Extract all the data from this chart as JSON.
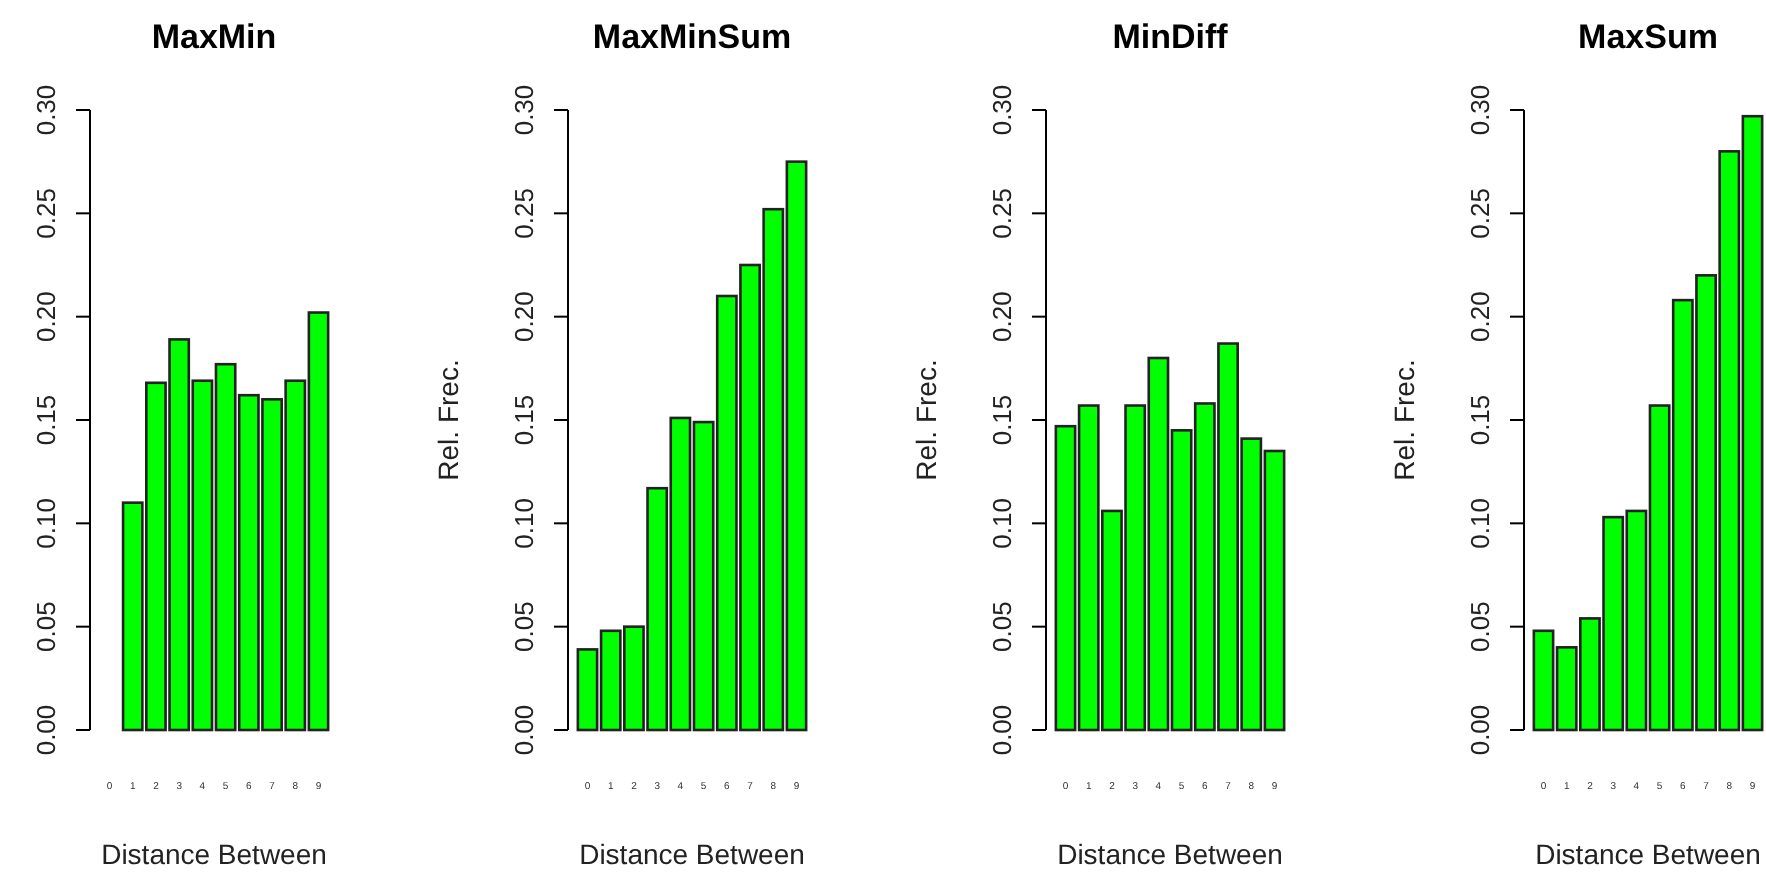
{
  "chart_data": [
    {
      "type": "bar",
      "title": "MaxMin",
      "xlabel": "Distance Between",
      "categories": [
        "0",
        "1",
        "2",
        "3",
        "4",
        "5",
        "6",
        "7",
        "8",
        "9"
      ],
      "values": [
        0,
        0.11,
        0.168,
        0.189,
        0.169,
        0.177,
        0.162,
        0.16,
        0.169,
        0.202
      ],
      "color": "#00ff00",
      "ylim": [
        0,
        0.3
      ],
      "yticks": [
        {
          "value": 0,
          "label": "0.00"
        },
        {
          "value": 0.05,
          "label": "0.05"
        },
        {
          "value": 0.1,
          "label": "0.10"
        },
        {
          "value": 0.15,
          "label": "0.15"
        },
        {
          "value": 0.2,
          "label": "0.20"
        },
        {
          "value": 0.25,
          "label": "0.25"
        },
        {
          "value": 0.3,
          "label": "0.30"
        }
      ]
    },
    {
      "type": "bar",
      "title": "MaxMinSum",
      "xlabel": "Distance Between",
      "ylabel": "Rel. Frec.",
      "categories": [
        "0",
        "1",
        "2",
        "3",
        "4",
        "5",
        "6",
        "7",
        "8",
        "9"
      ],
      "values": [
        0.039,
        0.048,
        0.05,
        0.117,
        0.151,
        0.149,
        0.21,
        0.225,
        0.252,
        0.275
      ],
      "color": "#00ff00",
      "ylim": [
        0,
        0.3
      ],
      "yticks": [
        {
          "value": 0,
          "label": "0.00"
        },
        {
          "value": 0.05,
          "label": "0.05"
        },
        {
          "value": 0.1,
          "label": "0.10"
        },
        {
          "value": 0.15,
          "label": "0.15"
        },
        {
          "value": 0.2,
          "label": "0.20"
        },
        {
          "value": 0.25,
          "label": "0.25"
        },
        {
          "value": 0.3,
          "label": "0.30"
        }
      ]
    },
    {
      "type": "bar",
      "title": "MinDiff",
      "xlabel": "Distance Between",
      "ylabel": "Rel. Frec.",
      "categories": [
        "0",
        "1",
        "2",
        "3",
        "4",
        "5",
        "6",
        "7",
        "8",
        "9"
      ],
      "values": [
        0.147,
        0.157,
        0.106,
        0.157,
        0.18,
        0.145,
        0.158,
        0.187,
        0.141,
        0.135
      ],
      "color": "#00ff00",
      "ylim": [
        0,
        0.3
      ],
      "yticks": [
        {
          "value": 0,
          "label": "0.00"
        },
        {
          "value": 0.05,
          "label": "0.05"
        },
        {
          "value": 0.1,
          "label": "0.10"
        },
        {
          "value": 0.15,
          "label": "0.15"
        },
        {
          "value": 0.2,
          "label": "0.20"
        },
        {
          "value": 0.25,
          "label": "0.25"
        },
        {
          "value": 0.3,
          "label": "0.30"
        }
      ]
    },
    {
      "type": "bar",
      "title": "MaxSum",
      "xlabel": "Distance Between",
      "ylabel": "Rel. Frec.",
      "categories": [
        "0",
        "1",
        "2",
        "3",
        "4",
        "5",
        "6",
        "7",
        "8",
        "9"
      ],
      "values": [
        0.048,
        0.04,
        0.054,
        0.103,
        0.106,
        0.157,
        0.208,
        0.22,
        0.28,
        0.297
      ],
      "color": "#00ff00",
      "ylim": [
        0,
        0.3
      ],
      "yticks": [
        {
          "value": 0,
          "label": "0.00"
        },
        {
          "value": 0.05,
          "label": "0.05"
        },
        {
          "value": 0.1,
          "label": "0.10"
        },
        {
          "value": 0.15,
          "label": "0.15"
        },
        {
          "value": 0.2,
          "label": "0.20"
        },
        {
          "value": 0.25,
          "label": "0.25"
        },
        {
          "value": 0.3,
          "label": "0.30"
        }
      ]
    }
  ]
}
